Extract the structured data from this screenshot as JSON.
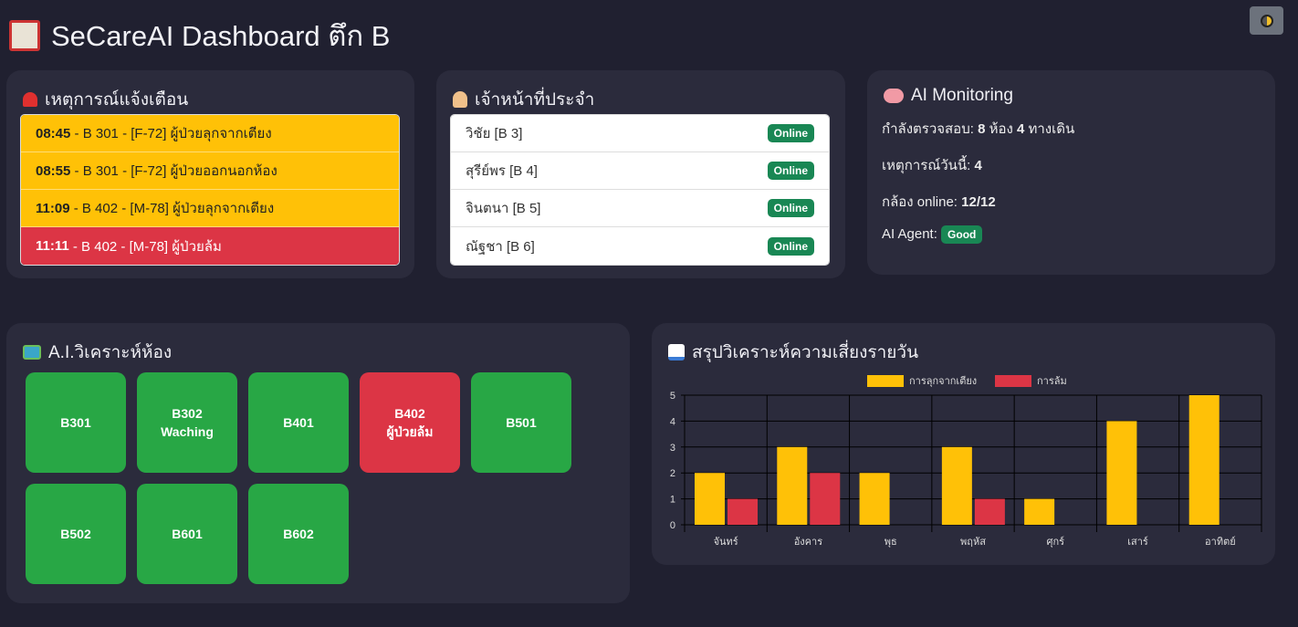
{
  "header": {
    "title": "SeCareAI Dashboard ตึก B",
    "icon": "hospital-icon",
    "theme_toggle": "theme-toggle-icon"
  },
  "alerts": {
    "title": "เหตุการณ์แจ้งเตือน",
    "icon": "siren-icon",
    "items": [
      {
        "time": "08:45",
        "text": " - B 301 - [F-72] ผู้ป่วยลุกจากเตียง",
        "level": "warning"
      },
      {
        "time": "08:55",
        "text": " - B 301 - [F-72] ผู้ป่วยออกนอกห้อง",
        "level": "warning"
      },
      {
        "time": "11:09",
        "text": " - B 402 - [M-78] ผู้ป่วยลุกจากเตียง",
        "level": "warning"
      },
      {
        "time": "11:11",
        "text": " - B 402 - [M-78] ผู้ป่วยล้ม",
        "level": "danger"
      }
    ]
  },
  "staff": {
    "title": "เจ้าหน้าที่ประจำ",
    "icon": "health-worker-icon",
    "items": [
      {
        "name": "วิชัย [B 3]",
        "status": "Online"
      },
      {
        "name": "สุรีย์พร [B 4]",
        "status": "Online"
      },
      {
        "name": "จินตนา [B 5]",
        "status": "Online"
      },
      {
        "name": "ณัฐชา [B 6]",
        "status": "Online"
      }
    ]
  },
  "monitoring": {
    "title": "AI Monitoring",
    "icon": "brain-icon",
    "checking_label": "กำลังตรวจสอบ: ",
    "rooms": "8",
    "rooms_unit": " ห้อง ",
    "walkways": "4",
    "walkways_unit": " ทางเดิน",
    "events_label": "เหตุการณ์วันนี้: ",
    "events": "4",
    "camera_label": "กล้อง online: ",
    "camera": "12/12",
    "agent_label": "AI Agent: ",
    "agent_status": "Good"
  },
  "rooms": {
    "title": "A.I.วิเคราะห์ห้อง",
    "icon": "map-icon",
    "items": [
      {
        "name": "B301",
        "status": "",
        "color": "#28a745"
      },
      {
        "name": "B302",
        "status": "Waching",
        "color": "#28a745"
      },
      {
        "name": "B401",
        "status": "",
        "color": "#28a745"
      },
      {
        "name": "B402",
        "status": "ผู้ป่วยล้ม",
        "color": "#dc3545"
      },
      {
        "name": "B501",
        "status": "",
        "color": "#28a745"
      },
      {
        "name": "B502",
        "status": "",
        "color": "#28a745"
      },
      {
        "name": "B601",
        "status": "",
        "color": "#28a745"
      },
      {
        "name": "B602",
        "status": "",
        "color": "#28a745"
      }
    ]
  },
  "chart_data": {
    "type": "bar",
    "title": "สรุปวิเคราะห์ความเสี่ยงรายวัน",
    "icon": "bar-chart-icon",
    "categories": [
      "จันทร์",
      "อังคาร",
      "พุธ",
      "พฤหัส",
      "ศุกร์",
      "เสาร์",
      "อาทิตย์"
    ],
    "series": [
      {
        "name": "การลุกจากเตียง",
        "color": "#ffc107",
        "values": [
          2,
          3,
          2,
          3,
          1,
          4,
          5
        ]
      },
      {
        "name": "การล้ม",
        "color": "#dc3545",
        "values": [
          1,
          2,
          0,
          1,
          0,
          0,
          0
        ]
      }
    ],
    "ylim": [
      0,
      5
    ],
    "yticks": [
      0,
      1,
      2,
      3,
      4,
      5
    ],
    "legend": "top",
    "grid": true
  }
}
